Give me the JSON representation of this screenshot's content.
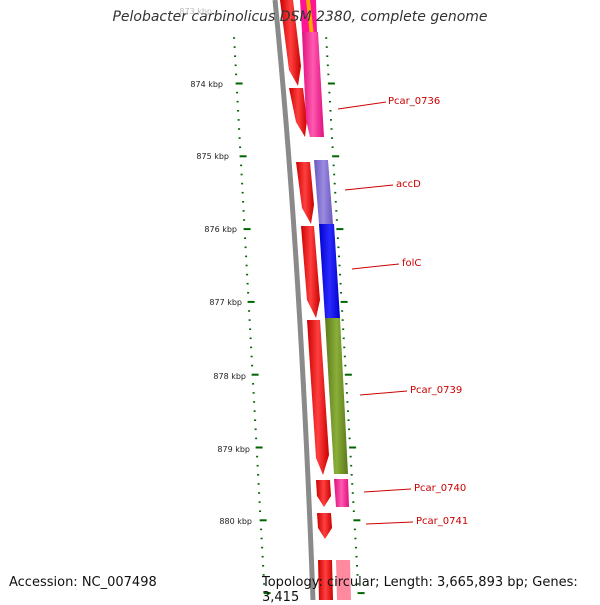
{
  "title": "Pelobacter carbinolicus DSM 2380, complete genome",
  "accession": "Accession: NC_007498",
  "summary": "Topology: circular; Length: 3,665,893 bp; Genes: 3,415",
  "scale_labels": [
    "873 kbp",
    "874 kbp",
    "875 kbp",
    "876 kbp",
    "877 kbp",
    "878 kbp",
    "879 kbp",
    "880 kbp"
  ],
  "gene_labels": [
    "Pcar_0736",
    "accD",
    "folC",
    "Pcar_0739",
    "Pcar_0740",
    "Pcar_0741"
  ],
  "colors": {
    "backbone": "#8a8a8a",
    "forward_strand": "#ff0000",
    "pcar_0736": "#ff1493",
    "accD": "#7b68cc",
    "folC": "#0000ff",
    "pcar_0739": "#6b8e23",
    "pcar_0740": "#ff1493",
    "tick": "#006400",
    "label": "#cc0000"
  }
}
